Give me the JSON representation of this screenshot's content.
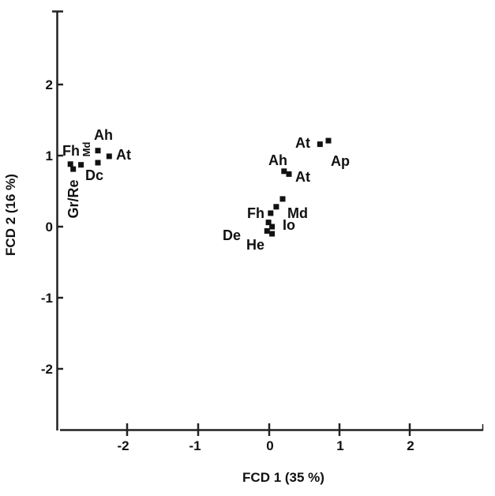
{
  "chart_data": {
    "type": "scatter",
    "title": "",
    "xlabel": "FCD 1 (35 %)",
    "ylabel": "FCD 2 (16 %)",
    "xlim": [
      -3.0,
      3.05
    ],
    "ylim": [
      -2.87,
      3.04
    ],
    "grid": false,
    "legend": null,
    "x_ticks": [
      -2,
      -1,
      0,
      1,
      2
    ],
    "x_tick_labels": [
      "-2",
      "-1",
      "0",
      "1",
      "2"
    ],
    "y_ticks": [
      -2,
      -1,
      0,
      1,
      2
    ],
    "y_tick_labels": [
      "-2",
      "-1",
      "0",
      "1",
      "2"
    ],
    "points": [
      {
        "x": -2.82,
        "y": 0.88
      },
      {
        "x": -2.67,
        "y": 0.87
      },
      {
        "x": -2.78,
        "y": 0.81
      },
      {
        "x": -2.43,
        "y": 1.07
      },
      {
        "x": -2.43,
        "y": 0.9
      },
      {
        "x": -2.27,
        "y": 0.99
      },
      {
        "x": 0.72,
        "y": 1.16
      },
      {
        "x": 0.84,
        "y": 1.21
      },
      {
        "x": 0.21,
        "y": 0.78
      },
      {
        "x": 0.28,
        "y": 0.74
      },
      {
        "x": 0.19,
        "y": 0.39
      },
      {
        "x": 0.1,
        "y": 0.28
      },
      {
        "x": 0.02,
        "y": 0.19
      },
      {
        "x": -0.01,
        "y": 0.06
      },
      {
        "x": 0.04,
        "y": 0.0
      },
      {
        "x": -0.03,
        "y": -0.06
      },
      {
        "x": 0.04,
        "y": -0.1
      }
    ],
    "annotations": [
      {
        "text": "Fh",
        "x": -2.9,
        "y": 1.05,
        "rotated": false
      },
      {
        "text": "Md",
        "x": -2.58,
        "y": 1.05,
        "rotated": true
      },
      {
        "text": "Ah",
        "x": -2.4,
        "y": 1.25,
        "rotated": false
      },
      {
        "text": "At",
        "x": -2.1,
        "y": 1.0,
        "rotated": false
      },
      {
        "text": "Dc",
        "x": -2.5,
        "y": 0.7,
        "rotated": false
      },
      {
        "text": "Gr/Re",
        "x": -2.78,
        "y": 0.35,
        "rotated": true
      },
      {
        "text": "At",
        "x": 0.48,
        "y": 1.14,
        "rotated": false
      },
      {
        "text": "Ap",
        "x": 1.02,
        "y": 0.89,
        "rotated": false
      },
      {
        "text": "Ah",
        "x": 0.12,
        "y": 0.89,
        "rotated": false
      },
      {
        "text": "At",
        "x": 0.48,
        "y": 0.66,
        "rotated": false
      },
      {
        "text": "Fh",
        "x": -0.17,
        "y": 0.18,
        "rotated": false
      },
      {
        "text": "Md",
        "x": 0.39,
        "y": 0.2,
        "rotated": false
      },
      {
        "text": "Io",
        "x": 0.31,
        "y": 0.0,
        "rotated": false
      },
      {
        "text": "De",
        "x": -0.42,
        "y": -0.12,
        "rotated": false
      },
      {
        "text": "He",
        "x": -0.2,
        "y": -0.25,
        "rotated": false
      }
    ]
  },
  "axes": {
    "x_title": "FCD 1 (35 %)",
    "y_title": "FCD 2 (16 %)",
    "x_ticks": [
      "-2",
      "-1",
      "0",
      "1",
      "2"
    ],
    "y_ticks": [
      "2",
      "1",
      "0",
      "-1",
      "-2"
    ]
  },
  "labels": {
    "left_fh": "Fh",
    "left_md": "Md",
    "left_ah": "Ah",
    "left_at": "At",
    "left_dc": "Dc",
    "left_grre": "Gr/Re",
    "right_at_top": "At",
    "right_ap": "Ap",
    "right_ah": "Ah",
    "right_at_low": "At",
    "center_fh": "Fh",
    "center_md": "Md",
    "center_io": "Io",
    "center_de": "De",
    "center_he": "He"
  },
  "colors": {
    "ink": "#111111",
    "background": "#ffffff"
  }
}
